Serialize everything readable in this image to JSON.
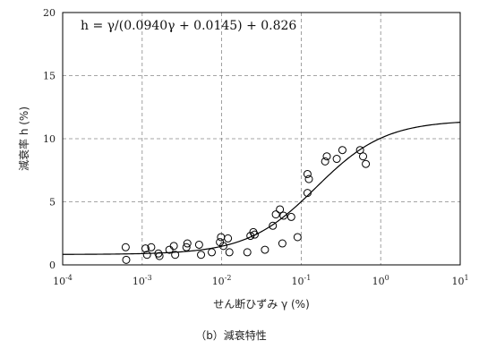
{
  "chart_data": {
    "type": "scatter",
    "title": "",
    "caption": "（b）減衰特性",
    "xlabel": "せん断ひずみ γ (%)",
    "ylabel": "減衰率 h (%)",
    "x_scale": "log",
    "xlim": [
      0.0001,
      10
    ],
    "ylim": [
      0,
      20
    ],
    "x_ticks": [
      "10^-4",
      "10^-3",
      "10^-2",
      "10^-1",
      "10^0",
      "10^1"
    ],
    "y_ticks": [
      0,
      5,
      10,
      15,
      20
    ],
    "grid": "dashed",
    "annotation": "h = γ/(0.0940γ + 0.0145) + 0.826",
    "fit_curve": {
      "a": 0.094,
      "b": 0.0145,
      "c": 0.826
    },
    "points": [
      {
        "x": 0.00062,
        "y": 1.4
      },
      {
        "x": 0.00063,
        "y": 0.4
      },
      {
        "x": 0.0011,
        "y": 1.3
      },
      {
        "x": 0.00115,
        "y": 0.8
      },
      {
        "x": 0.0013,
        "y": 1.4
      },
      {
        "x": 0.0016,
        "y": 0.9
      },
      {
        "x": 0.00165,
        "y": 0.7
      },
      {
        "x": 0.0022,
        "y": 1.2
      },
      {
        "x": 0.0025,
        "y": 1.5
      },
      {
        "x": 0.0026,
        "y": 0.8
      },
      {
        "x": 0.0036,
        "y": 1.4
      },
      {
        "x": 0.0037,
        "y": 1.7
      },
      {
        "x": 0.0052,
        "y": 1.6
      },
      {
        "x": 0.0055,
        "y": 0.8
      },
      {
        "x": 0.0075,
        "y": 1.0
      },
      {
        "x": 0.0095,
        "y": 1.8
      },
      {
        "x": 0.0098,
        "y": 2.2
      },
      {
        "x": 0.0105,
        "y": 1.5
      },
      {
        "x": 0.012,
        "y": 2.1
      },
      {
        "x": 0.0125,
        "y": 1.0
      },
      {
        "x": 0.021,
        "y": 1.0
      },
      {
        "x": 0.023,
        "y": 2.3
      },
      {
        "x": 0.025,
        "y": 2.6
      },
      {
        "x": 0.026,
        "y": 2.4
      },
      {
        "x": 0.035,
        "y": 1.2
      },
      {
        "x": 0.044,
        "y": 3.1
      },
      {
        "x": 0.048,
        "y": 4.0
      },
      {
        "x": 0.054,
        "y": 4.4
      },
      {
        "x": 0.058,
        "y": 1.7
      },
      {
        "x": 0.06,
        "y": 3.9
      },
      {
        "x": 0.075,
        "y": 3.8
      },
      {
        "x": 0.09,
        "y": 2.2
      },
      {
        "x": 0.12,
        "y": 5.7
      },
      {
        "x": 0.125,
        "y": 6.8
      },
      {
        "x": 0.12,
        "y": 7.2
      },
      {
        "x": 0.2,
        "y": 8.2
      },
      {
        "x": 0.21,
        "y": 8.6
      },
      {
        "x": 0.28,
        "y": 8.4
      },
      {
        "x": 0.33,
        "y": 9.1
      },
      {
        "x": 0.55,
        "y": 9.1
      },
      {
        "x": 0.6,
        "y": 8.6
      },
      {
        "x": 0.65,
        "y": 8.0
      }
    ]
  }
}
